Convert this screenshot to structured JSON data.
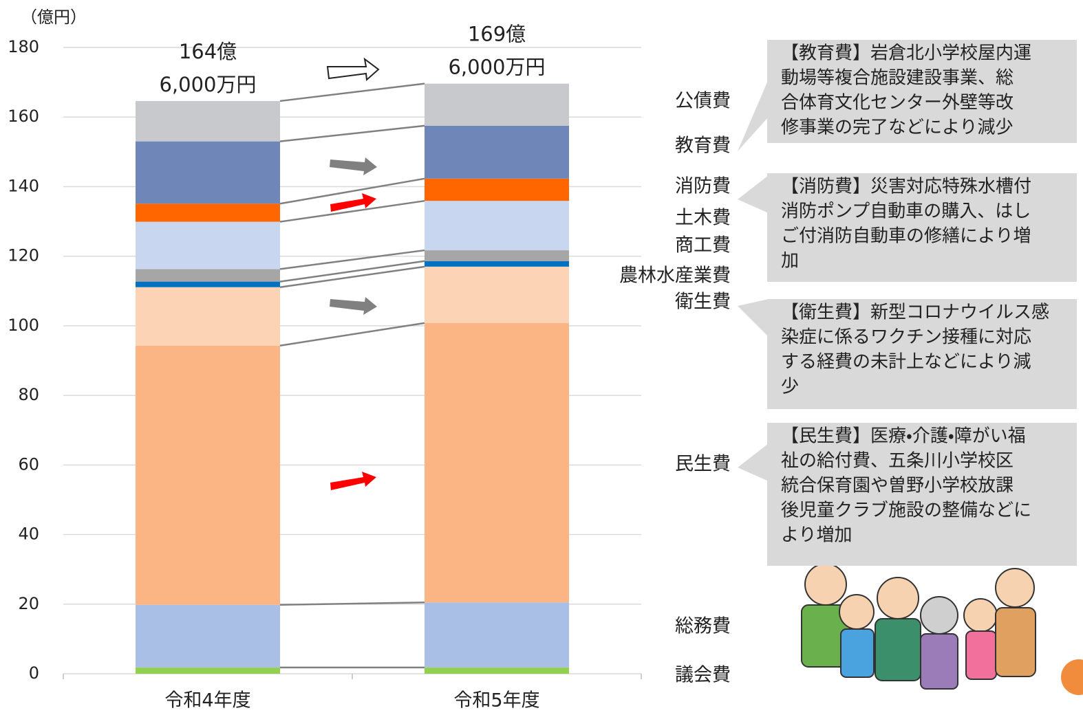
{
  "chart_data": {
    "type": "stacked_bar",
    "y_unit_label": "（億円）",
    "categories": [
      "令和4年度",
      "令和5年度"
    ],
    "total_labels": [
      [
        "164億",
        "6,000万円"
      ],
      [
        "169億",
        "6,000万円"
      ]
    ],
    "series": [
      {
        "name": "議会費",
        "color": "#92d050",
        "values": [
          1.8,
          1.8
        ]
      },
      {
        "name": "総務費",
        "color": "#aabfe6",
        "values": [
          18.0,
          18.7
        ]
      },
      {
        "name": "民生費",
        "color": "#fbb584",
        "values": [
          74.5,
          80.3
        ]
      },
      {
        "name": "衛生費",
        "color": "#fcd3b4",
        "values": [
          16.8,
          16.2
        ]
      },
      {
        "name": "農林水産業費",
        "color": "#0070c0",
        "values": [
          1.6,
          1.6
        ]
      },
      {
        "name": "商工費",
        "color": "#a6a6a6",
        "values": [
          3.6,
          3.1
        ]
      },
      {
        "name": "土木費",
        "color": "#c9d6f0",
        "values": [
          13.6,
          14.2
        ]
      },
      {
        "name": "消防費",
        "color": "#ff6600",
        "values": [
          5.2,
          6.4
        ]
      },
      {
        "name": "教育費",
        "color": "#6e86b8",
        "values": [
          17.9,
          15.2
        ]
      },
      {
        "name": "公債費",
        "color": "#c8c9cc",
        "values": [
          11.6,
          12.1
        ]
      }
    ],
    "ylim": [
      0,
      180
    ],
    "yticks": [
      0,
      20,
      40,
      60,
      80,
      100,
      120,
      140,
      160,
      180
    ],
    "grid": true,
    "annotations": [
      [
        "【教育費】岩倉北小学校屋内運",
        "動場等複合施設建設事業、総",
        "合体育文化センター外壁等改",
        "修事業の完了などにより減少"
      ],
      [
        "【消防費】災害対応特殊水槽付",
        "消防ポンプ自動車の購入、はし",
        "ご付消防自動車の修繕により増",
        "加"
      ],
      [
        "【衛生費】新型コロナウイルス感",
        "染症に係るワクチン接種に対応",
        "する経費の未計上などにより減",
        "少"
      ],
      [
        "【民生費】医療・介護・障がい福",
        "祉の給付費、五条川小学校区",
        "統合保育園や曽野小学校放課",
        "後児童クラブ施設の整備などに",
        "より増加"
      ]
    ]
  }
}
